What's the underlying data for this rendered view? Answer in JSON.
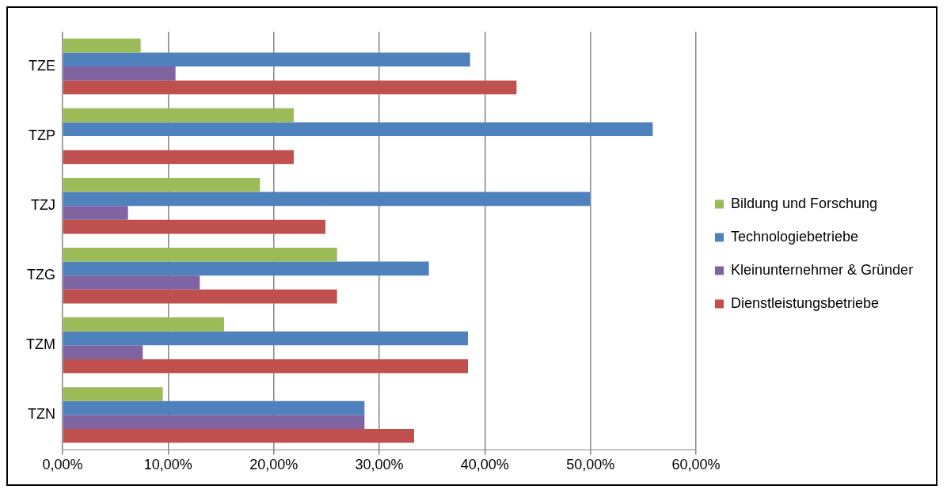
{
  "chart_data": {
    "type": "bar",
    "orientation": "horizontal",
    "categories": [
      "TZE",
      "TZP",
      "TZJ",
      "TZG",
      "TZM",
      "TZN"
    ],
    "series": [
      {
        "name": "Bildung und Forschung",
        "color": "#9bbb59",
        "values": [
          7.4,
          21.9,
          18.7,
          26.0,
          15.3,
          9.5
        ]
      },
      {
        "name": "Technologiebetriebe",
        "color": "#4f81bd",
        "values": [
          38.6,
          55.9,
          50.0,
          34.7,
          38.4,
          28.6
        ]
      },
      {
        "name": "Kleinunternehmer & Gründer",
        "color": "#8064a2",
        "values": [
          10.7,
          0,
          6.2,
          13.0,
          7.6,
          28.6
        ]
      },
      {
        "name": "Dienstleistungsbetriebe",
        "color": "#c0504d",
        "values": [
          43.0,
          21.9,
          24.9,
          26.0,
          38.4,
          33.3
        ]
      }
    ],
    "xlim": [
      0,
      60
    ],
    "xticks": [
      {
        "value": 0,
        "label": "0,00%"
      },
      {
        "value": 10,
        "label": "10,00%"
      },
      {
        "value": 20,
        "label": "20,00%"
      },
      {
        "value": 30,
        "label": "30,00%"
      },
      {
        "value": 40,
        "label": "40,00%"
      },
      {
        "value": 50,
        "label": "50,00%"
      },
      {
        "value": 60,
        "label": "60,00%"
      }
    ],
    "grid": "x",
    "legend": "right"
  }
}
